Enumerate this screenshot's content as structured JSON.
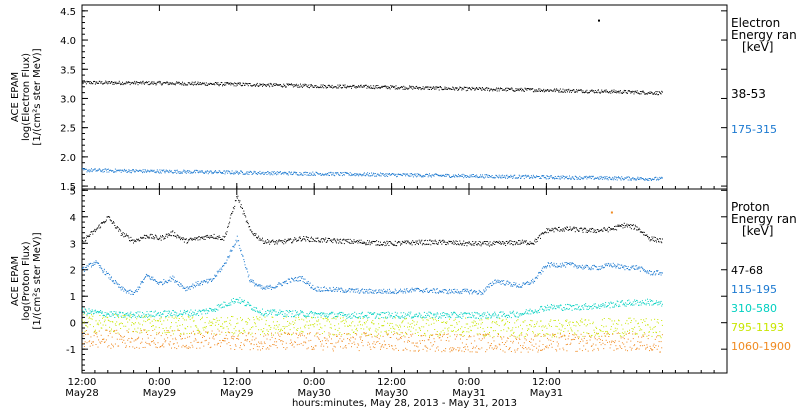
{
  "chart_data": [
    {
      "type": "scatter",
      "panel": "electron",
      "ylabel_lines": [
        "ACE EPAM",
        "log(Electron Flux)",
        "[1/(cm²s ster MeV)]"
      ],
      "legend_title_lines": [
        "Electron",
        "Energy ran",
        "[keV]"
      ],
      "ylim": [
        1.45,
        4.6
      ],
      "yticks": [
        1.5,
        2.0,
        2.5,
        3.0,
        3.5,
        4.0,
        4.5
      ],
      "ytick_labels": [
        "1.5",
        "2.0",
        "2.5",
        "3.0",
        "3.5",
        "4.0",
        "4.5"
      ],
      "xlim": [
        0,
        100
      ],
      "series": [
        {
          "name": "38-53",
          "color": "#000000",
          "x": [
            0,
            12,
            24,
            36,
            48,
            60,
            72,
            84,
            90
          ],
          "y": [
            3.28,
            3.27,
            3.25,
            3.22,
            3.2,
            3.17,
            3.15,
            3.12,
            3.1
          ]
        },
        {
          "name": "175-315",
          "color": "#1a78d0",
          "x": [
            0,
            12,
            24,
            36,
            48,
            60,
            72,
            84,
            90
          ],
          "y": [
            1.78,
            1.76,
            1.74,
            1.72,
            1.7,
            1.68,
            1.66,
            1.64,
            1.63
          ]
        }
      ],
      "outliers": [
        {
          "x": 80,
          "y": 4.35
        }
      ]
    },
    {
      "type": "scatter",
      "panel": "proton",
      "ylabel_lines": [
        "ACE EPAM",
        "log(Proton Flux)",
        "[1/(cm²s ster MeV)]"
      ],
      "legend_title_lines": [
        "Proton",
        "Energy ran",
        "[keV]"
      ],
      "ylim": [
        -1.9,
        5.05
      ],
      "yticks": [
        -1,
        0,
        1,
        2,
        3,
        4,
        5
      ],
      "ytick_labels": [
        "-1",
        "0",
        "1",
        "2",
        "3",
        "4",
        "5"
      ],
      "xlim": [
        0,
        100
      ],
      "series": [
        {
          "name": "47-68",
          "color": "#000000",
          "x": [
            0,
            2,
            4,
            6,
            8,
            10,
            12,
            14,
            16,
            18,
            20,
            22,
            24,
            26,
            28,
            30,
            32,
            34,
            36,
            40,
            44,
            48,
            52,
            56,
            60,
            64,
            68,
            70,
            72,
            74,
            76,
            78,
            80,
            82,
            84,
            86,
            88,
            90
          ],
          "y": [
            3.1,
            3.5,
            4.0,
            3.4,
            3.1,
            3.3,
            3.2,
            3.4,
            3.1,
            3.2,
            3.3,
            3.2,
            4.8,
            3.5,
            3.1,
            3.05,
            3.1,
            3.2,
            3.15,
            3.1,
            3.05,
            3.0,
            3.05,
            3.05,
            3.0,
            3.0,
            3.05,
            3.05,
            3.5,
            3.55,
            3.55,
            3.5,
            3.5,
            3.55,
            3.7,
            3.6,
            3.2,
            3.1
          ]
        },
        {
          "name": "115-195",
          "color": "#1a78d0",
          "x": [
            0,
            2,
            4,
            6,
            8,
            10,
            12,
            14,
            16,
            18,
            20,
            22,
            24,
            26,
            28,
            30,
            32,
            34,
            36,
            40,
            44,
            48,
            52,
            56,
            60,
            62,
            64,
            66,
            68,
            70,
            72,
            74,
            76,
            78,
            80,
            82,
            84,
            86,
            88,
            90
          ],
          "y": [
            2.0,
            2.3,
            1.8,
            1.3,
            1.1,
            1.8,
            1.5,
            1.7,
            1.3,
            1.5,
            1.6,
            2.2,
            3.2,
            1.6,
            1.3,
            1.4,
            1.6,
            1.7,
            1.3,
            1.25,
            1.2,
            1.2,
            1.25,
            1.2,
            1.2,
            1.15,
            1.6,
            1.5,
            1.4,
            1.6,
            2.2,
            2.2,
            2.2,
            2.1,
            2.1,
            2.2,
            2.1,
            2.1,
            1.9,
            1.9
          ]
        },
        {
          "name": "310-580",
          "color": "#00d0c0",
          "x": [
            0,
            6,
            12,
            18,
            20,
            24,
            28,
            34,
            40,
            46,
            52,
            58,
            64,
            68,
            72,
            76,
            80,
            84,
            88,
            90
          ],
          "y": [
            0.45,
            0.3,
            0.35,
            0.4,
            0.5,
            0.9,
            0.4,
            0.35,
            0.3,
            0.3,
            0.3,
            0.3,
            0.3,
            0.35,
            0.6,
            0.6,
            0.65,
            0.75,
            0.8,
            0.7
          ]
        },
        {
          "name": "795-1193",
          "color": "#c8e600",
          "x": [
            0,
            12,
            24,
            36,
            48,
            60,
            72,
            84,
            90
          ],
          "y": [
            0.0,
            -0.05,
            -0.1,
            -0.1,
            -0.15,
            -0.15,
            -0.2,
            -0.15,
            -0.2
          ]
        },
        {
          "name": "1060-1900",
          "color": "#f08a20",
          "x": [
            0,
            12,
            24,
            36,
            48,
            60,
            72,
            84,
            90
          ],
          "y": [
            -0.6,
            -0.6,
            -0.65,
            -0.7,
            -0.7,
            -0.75,
            -0.75,
            -0.7,
            -0.75
          ]
        }
      ],
      "outliers": [
        {
          "x": 82,
          "y": 4.2
        }
      ]
    }
  ],
  "x_axis": {
    "ticks": [
      {
        "t": 0,
        "time": "12:00",
        "date": "May28"
      },
      {
        "t": 12,
        "time": "0:00",
        "date": "May29"
      },
      {
        "t": 24,
        "time": "12:00",
        "date": "May29"
      },
      {
        "t": 36,
        "time": "0:00",
        "date": "May30"
      },
      {
        "t": 48,
        "time": "12:00",
        "date": "May30"
      },
      {
        "t": 60,
        "time": "0:00",
        "date": "May31"
      },
      {
        "t": 72,
        "time": "12:00",
        "date": "May31"
      }
    ],
    "label": "hours:minutes, May 28, 2013 - May 31, 2013"
  }
}
